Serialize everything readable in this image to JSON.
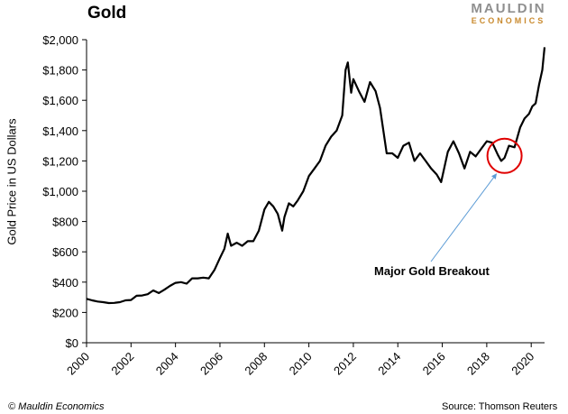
{
  "header": {
    "title": "Gold",
    "logo_main": "MAULDIN",
    "logo_sub": "ECONOMICS"
  },
  "footer": {
    "copyright": "© Mauldin Economics",
    "source": "Source: Thomson Reuters"
  },
  "colors": {
    "line": "#000000",
    "highlight_circle": "#e00000",
    "arrow": "#5b9bd5",
    "logo_main": "#8f8f8f",
    "logo_sub": "#c98a2e"
  },
  "chart_data": {
    "type": "line",
    "title": "Gold",
    "xlabel": "",
    "ylabel": "Gold Price in US Dollars",
    "xlim": [
      2000,
      2020.6
    ],
    "ylim": [
      0,
      2000
    ],
    "x_ticks": [
      2000,
      2002,
      2004,
      2006,
      2008,
      2010,
      2012,
      2014,
      2016,
      2018,
      2020
    ],
    "x_tick_labels": [
      "2000",
      "2002",
      "2004",
      "2006",
      "2008",
      "2010",
      "2012",
      "2014",
      "2016",
      "2018",
      "2020"
    ],
    "y_ticks": [
      0,
      200,
      400,
      600,
      800,
      1000,
      1200,
      1400,
      1600,
      1800,
      2000
    ],
    "y_tick_labels": [
      "$0",
      "$200",
      "$400",
      "$600",
      "$800",
      "$1,000",
      "$1,200",
      "$1,400",
      "$1,600",
      "$1,800",
      "$2,000"
    ],
    "grid": false,
    "legend": "none",
    "series": [
      {
        "x": [
          2000.0,
          2000.25,
          2000.5,
          2000.75,
          2001.0,
          2001.25,
          2001.5,
          2001.75,
          2002.0,
          2002.25,
          2002.5,
          2002.75,
          2003.0,
          2003.25,
          2003.5,
          2003.75,
          2004.0,
          2004.25,
          2004.5,
          2004.75,
          2005.0,
          2005.25,
          2005.5,
          2005.75,
          2006.0,
          2006.2,
          2006.35,
          2006.5,
          2006.75,
          2007.0,
          2007.25,
          2007.5,
          2007.75,
          2008.0,
          2008.2,
          2008.4,
          2008.6,
          2008.8,
          2008.9,
          2009.1,
          2009.3,
          2009.5,
          2009.75,
          2010.0,
          2010.25,
          2010.5,
          2010.75,
          2011.0,
          2011.25,
          2011.5,
          2011.65,
          2011.75,
          2011.9,
          2012.0,
          2012.25,
          2012.5,
          2012.75,
          2013.0,
          2013.2,
          2013.35,
          2013.5,
          2013.75,
          2014.0,
          2014.25,
          2014.5,
          2014.75,
          2015.0,
          2015.25,
          2015.5,
          2015.75,
          2015.95,
          2016.25,
          2016.5,
          2016.75,
          2017.0,
          2017.25,
          2017.5,
          2017.75,
          2018.0,
          2018.25,
          2018.5,
          2018.65,
          2018.8,
          2019.0,
          2019.25,
          2019.5,
          2019.7,
          2019.9,
          2020.05,
          2020.2,
          2020.35,
          2020.5,
          2020.6
        ],
        "y": [
          290,
          280,
          272,
          268,
          262,
          263,
          268,
          280,
          282,
          310,
          312,
          320,
          345,
          328,
          350,
          375,
          395,
          400,
          390,
          425,
          425,
          430,
          425,
          480,
          560,
          620,
          720,
          640,
          660,
          640,
          670,
          670,
          740,
          880,
          930,
          900,
          850,
          740,
          830,
          920,
          900,
          940,
          1000,
          1100,
          1150,
          1200,
          1300,
          1360,
          1400,
          1500,
          1800,
          1850,
          1650,
          1740,
          1660,
          1590,
          1720,
          1660,
          1550,
          1400,
          1250,
          1250,
          1220,
          1300,
          1320,
          1200,
          1250,
          1200,
          1150,
          1110,
          1060,
          1260,
          1330,
          1250,
          1150,
          1260,
          1230,
          1280,
          1330,
          1320,
          1240,
          1200,
          1220,
          1300,
          1290,
          1420,
          1480,
          1510,
          1560,
          1580,
          1700,
          1800,
          1950
        ]
      }
    ],
    "annotations": [
      {
        "text": "Major Gold Breakout",
        "points_to": {
          "x": 2018.8,
          "y": 1210
        }
      }
    ]
  }
}
